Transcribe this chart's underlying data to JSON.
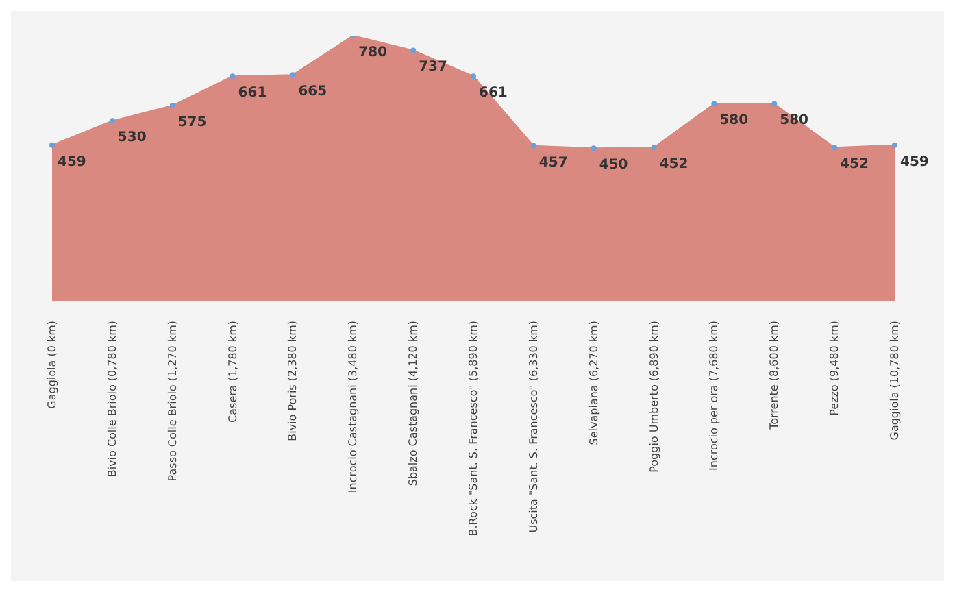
{
  "chart_data": {
    "type": "area",
    "categories": [
      "Gaggiola (0 km)",
      "Bivio Colle Briolo (0,780 km)",
      "Passo Colle Briolo (1,270 km)",
      "Casera (1,780 km)",
      "Bivio Poris (2,380 km)",
      "Incrocio Castagnani (3,480 km)",
      "Sbalzo Castagnani (4,120 km)",
      "B.Rock \"Sant. S. Francesco\" (5,890 km)",
      "Uscita \"Sant. S. Francesco\" (6,330 km)",
      "Selvapiana (6,270 km)",
      "Poggio Umberto (6,890 km)",
      "Incrocio per ora (7,680 km)",
      "Torrente (8,600 km)",
      "Pezzo (9,480 km)",
      "Gaggiola (10,780 km)"
    ],
    "series": [
      {
        "color": "#d9897f",
        "values": [
          459,
          530,
          575,
          661,
          665,
          780,
          737,
          661,
          457,
          450,
          452,
          580,
          580,
          452,
          459
        ]
      }
    ],
    "data_labels": true,
    "marker": "circle",
    "grid": false,
    "legend": false
  }
}
